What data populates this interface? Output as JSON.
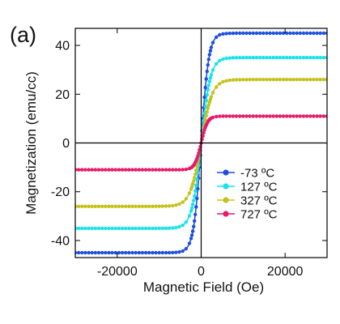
{
  "panel_label": "(a)",
  "chart_data": {
    "type": "line",
    "xlabel": "Magnetic Field (Oe)",
    "ylabel": "Magnetization (emu/cc)",
    "xlim": [
      -30000,
      30000
    ],
    "ylim": [
      -47,
      47
    ],
    "xticks": [
      -20000,
      0,
      20000
    ],
    "xtick_labels": [
      "-20000",
      "0",
      "20000"
    ],
    "yticks": [
      -40,
      -20,
      0,
      20,
      40
    ],
    "ytick_labels": [
      "-40",
      "-20",
      "0",
      "20",
      "40"
    ],
    "zero_lines": true,
    "grid": false,
    "legend_position": "lower-right",
    "series": [
      {
        "name": "-73 ºC",
        "color": "#1f4fe0",
        "Ms": 45,
        "Hsat": 1800
      },
      {
        "name": "127 ºC",
        "color": "#19e3ea",
        "Ms": 35,
        "Hsat": 2200
      },
      {
        "name": "327 ºC",
        "color": "#c5c21a",
        "Ms": 26,
        "Hsat": 2600
      },
      {
        "name": "727 ºC",
        "color": "#e8186c",
        "Ms": 11,
        "Hsat": 1500
      }
    ]
  }
}
